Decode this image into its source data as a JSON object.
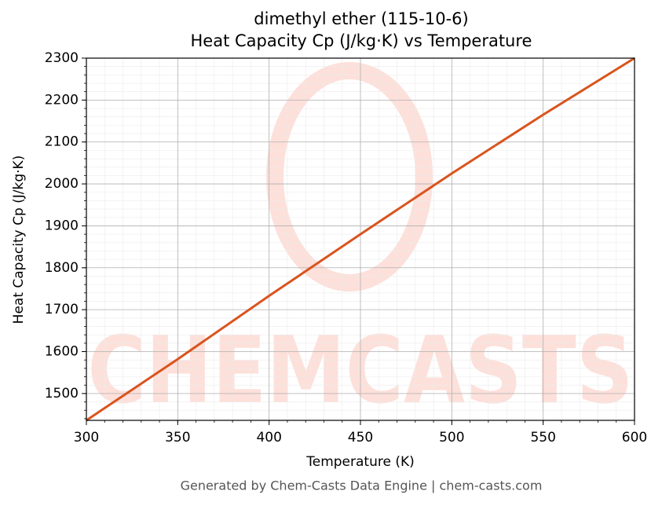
{
  "chart_data": {
    "type": "line",
    "title": "dimethyl ether (115-10-6)",
    "subtitle": "Heat Capacity Cp (J/kg·K) vs Temperature",
    "x_label": "Temperature (K)",
    "y_label": "Heat Capacity Cp (J/kg·K)",
    "footer": "Generated by Chem-Casts Data Engine | chem-casts.com",
    "watermark": "CHEMCASTS",
    "x": [
      300,
      350,
      400,
      450,
      500,
      550,
      600
    ],
    "series": [
      {
        "name": "Heat Capacity Cp",
        "color": "#d9541e",
        "values": [
          1436,
          1582,
          1733,
          1880,
          2025,
          2165,
          2300
        ]
      }
    ],
    "xlim": [
      300,
      600
    ],
    "ylim": [
      1436,
      2300
    ],
    "xticks": [
      300,
      350,
      400,
      450,
      500,
      550,
      600
    ],
    "yticks": [
      1500,
      1600,
      1700,
      1800,
      1900,
      2000,
      2100,
      2200,
      2300
    ],
    "grid": true
  }
}
